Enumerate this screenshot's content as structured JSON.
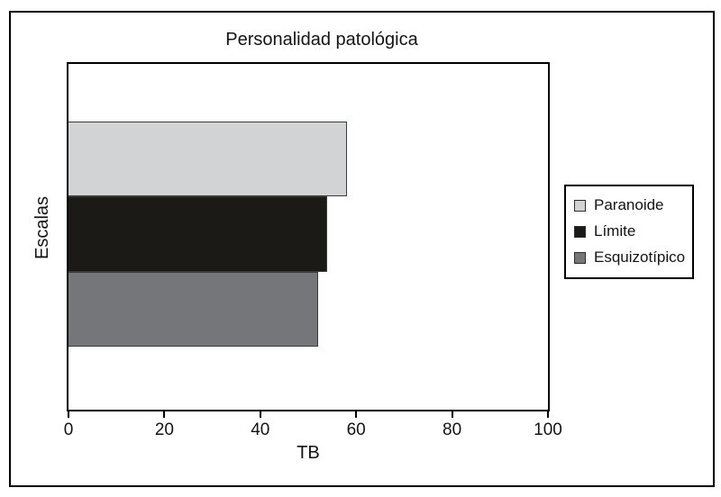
{
  "figure": {
    "title": "Personalidad patológica",
    "xlabel": "TB",
    "ylabel": "Escalas"
  },
  "legend": {
    "position": "right",
    "items": [
      {
        "label": "Paranoide",
        "color": "#d2d3d5"
      },
      {
        "label": "Límite",
        "color": "#1b1a16"
      },
      {
        "label": "Esquizotípico",
        "color": "#74767a"
      }
    ]
  },
  "chart_data": {
    "type": "bar",
    "orientation": "horizontal",
    "title": "Personalidad patológica",
    "xlabel": "TB",
    "ylabel": "Escalas",
    "categories": [
      "Paranoide",
      "Límite",
      "Esquizotípico"
    ],
    "values": [
      58,
      54,
      52
    ],
    "colors": [
      "#d2d3d5",
      "#1b1a16",
      "#74767a"
    ],
    "xlim": [
      0,
      100
    ],
    "xticks": [
      0,
      20,
      40,
      60,
      80,
      100
    ],
    "grid": false,
    "legend_position": "right",
    "plot_border": "#000000",
    "background": "#ffffff"
  }
}
